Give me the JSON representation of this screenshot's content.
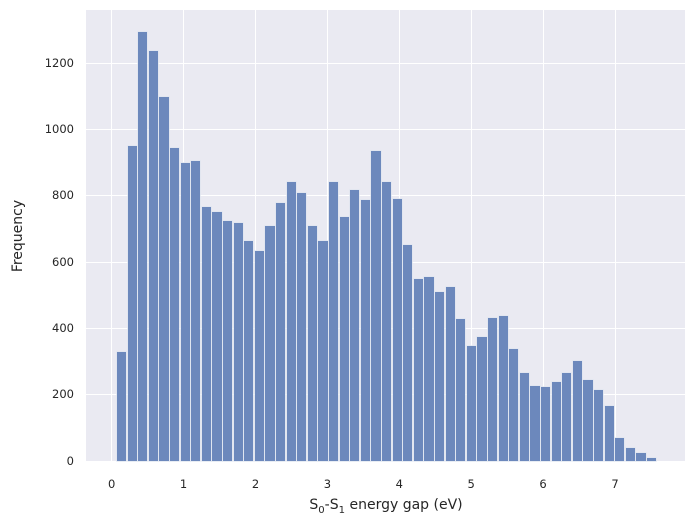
{
  "figure": {
    "background": "#ffffff",
    "plot_background": "#eaeaf2",
    "grid_color": "#ffffff",
    "bar_color": "#6c88bc",
    "text_color": "#262626"
  },
  "chart_data": {
    "type": "bar",
    "subtype": "histogram",
    "title": "",
    "xlabel": "S0-S1 energy gap (eV)",
    "xlabel_parts": {
      "s1": "S",
      "sub1": "0",
      "s2": "-S",
      "sub2": "1",
      "rest": " energy gap (eV)"
    },
    "ylabel": "Frequency",
    "bin_start": 0.065,
    "bin_width": 0.1474,
    "counts": [
      330,
      950,
      1293,
      1238,
      1098,
      945,
      898,
      905,
      765,
      752,
      725,
      719,
      665,
      633,
      708,
      777,
      842,
      808,
      708,
      665,
      842,
      737,
      819,
      787,
      936,
      842,
      789,
      651,
      548,
      556,
      511,
      526,
      428,
      347,
      375,
      430,
      437,
      337,
      266,
      227,
      224,
      239,
      264,
      302,
      244,
      214,
      166,
      68,
      38,
      23,
      8
    ],
    "x_ticks": [
      0,
      1,
      2,
      3,
      4,
      5,
      6,
      7
    ],
    "y_ticks": [
      0,
      200,
      400,
      600,
      800,
      1000,
      1200
    ],
    "xlim": [
      -0.36,
      7.97
    ],
    "ylim": [
      0,
      1360
    ],
    "grid": true,
    "legend": false
  }
}
